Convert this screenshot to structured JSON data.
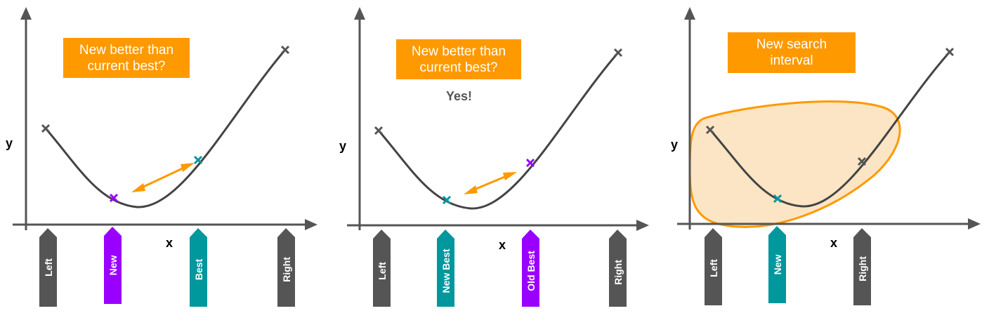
{
  "colors": {
    "axis": "#555555",
    "curve": "#444444",
    "grey_marker": "#555555",
    "purple": "#9900FF",
    "teal": "#00979D",
    "orange": "#FF9900",
    "interval_fill": "#FCE5C4"
  },
  "panels": [
    {
      "callout": "New better than\ncurrent best?",
      "answer": "",
      "x_label": "x",
      "y_label": "y",
      "markers": [
        {
          "label": "Left",
          "color": "grey"
        },
        {
          "label": "New",
          "color": "purple"
        },
        {
          "label": "Best",
          "color": "teal"
        },
        {
          "label": "Right",
          "color": "grey"
        }
      ]
    },
    {
      "callout": "New better than\ncurrent best?",
      "answer": "Yes!",
      "x_label": "x",
      "y_label": "y",
      "markers": [
        {
          "label": "Left",
          "color": "grey"
        },
        {
          "label": "New Best",
          "color": "teal"
        },
        {
          "label": "Old Best",
          "color": "purple"
        },
        {
          "label": "Right",
          "color": "grey"
        }
      ]
    },
    {
      "callout": "New search\ninterval",
      "answer": "",
      "x_label": "x",
      "y_label": "y",
      "markers": [
        {
          "label": "Left",
          "color": "grey"
        },
        {
          "label": "New",
          "color": "teal"
        },
        {
          "label": "Right",
          "color": "grey"
        }
      ]
    }
  ]
}
